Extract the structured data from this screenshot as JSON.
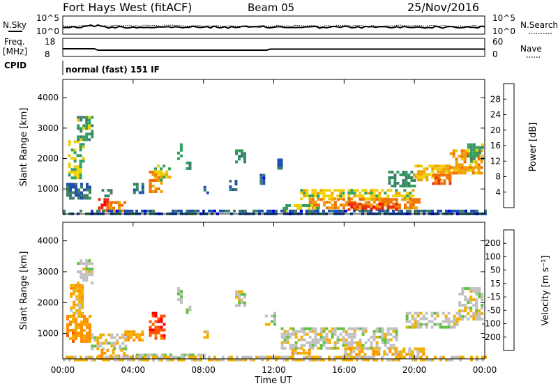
{
  "header": {
    "radar": "Fort Hays West (fitACF)",
    "beam": "Beam 05",
    "date": "25/Nov/2016"
  },
  "noise_panel": {
    "left_label": "N.Sky",
    "left_ticks": [
      "10^5",
      "10^0"
    ],
    "right_label": "N.Search",
    "right_ticks": [
      "10^5",
      "10^0"
    ]
  },
  "freq_panel": {
    "left_label_1": "Freq.",
    "left_label_2": "[MHz]",
    "left_ticks": [
      "18",
      "8"
    ],
    "right_label": "Nave",
    "right_ticks": [
      "60",
      "0"
    ]
  },
  "cpid": {
    "label": "CPID",
    "value": "normal (fast) 151 IF"
  },
  "colors": {
    "power": [
      "#0000ff",
      "#1f4fb0",
      "#3f7f6a",
      "#2f9f5f",
      "#f0d000",
      "#f0a000",
      "#f07000",
      "#e83010",
      "#ff0000"
    ],
    "velocity": [
      "#ff0000",
      "#ff5000",
      "#ff9000",
      "#f0b000",
      "#c0c0c0",
      "#60c040",
      "#40a040",
      "#1f6fa0",
      "#2020b0"
    ]
  },
  "chart_data": [
    {
      "type": "heatmap",
      "name": "power",
      "ylabel": "Slant Range [km]",
      "ylim": [
        180,
        4600
      ],
      "yticks": [
        "1000",
        "2000",
        "3000",
        "4000"
      ],
      "colorbar_label": "Power [dB]",
      "colorbar_ticks": [
        "4",
        "8",
        "12",
        "16",
        "20",
        "24",
        "28"
      ],
      "colorbar_range": [
        0,
        32
      ],
      "regions": [
        {
          "t": [
            0.3,
            1.2
          ],
          "r": [
            1400,
            2600
          ],
          "v": 14
        },
        {
          "t": [
            0.8,
            1.6
          ],
          "r": [
            2600,
            3400
          ],
          "v": 12
        },
        {
          "t": [
            0.2,
            1.6
          ],
          "r": [
            700,
            1200
          ],
          "v": 8
        },
        {
          "t": [
            2.2,
            2.8
          ],
          "r": [
            800,
            1000
          ],
          "v": 10
        },
        {
          "t": [
            2.0,
            2.5
          ],
          "r": [
            300,
            700
          ],
          "v": 26
        },
        {
          "t": [
            2.5,
            3.6
          ],
          "r": [
            300,
            600
          ],
          "v": 22
        },
        {
          "t": [
            4.0,
            4.6
          ],
          "r": [
            900,
            1200
          ],
          "v": 8
        },
        {
          "t": [
            4.9,
            5.6
          ],
          "r": [
            900,
            1600
          ],
          "v": 22
        },
        {
          "t": [
            5.2,
            6.1
          ],
          "r": [
            1300,
            1800
          ],
          "v": 16
        },
        {
          "t": [
            6.5,
            6.7
          ],
          "r": [
            2000,
            2500
          ],
          "v": 12
        },
        {
          "t": [
            7.0,
            7.2
          ],
          "r": [
            1700,
            1900
          ],
          "v": 10
        },
        {
          "t": [
            8.0,
            8.3
          ],
          "r": [
            900,
            1100
          ],
          "v": 6
        },
        {
          "t": [
            9.8,
            10.3
          ],
          "r": [
            1900,
            2300
          ],
          "v": 10
        },
        {
          "t": [
            9.3,
            9.8
          ],
          "r": [
            1000,
            1300
          ],
          "v": 8
        },
        {
          "t": [
            11.2,
            11.4
          ],
          "r": [
            1200,
            1500
          ],
          "v": 6
        },
        {
          "t": [
            12.2,
            12.5
          ],
          "r": [
            1700,
            2000
          ],
          "v": 6
        },
        {
          "t": [
            13.5,
            20.0
          ],
          "r": [
            700,
            1000
          ],
          "v": 16
        },
        {
          "t": [
            14.0,
            20.5
          ],
          "r": [
            400,
            700
          ],
          "v": 22
        },
        {
          "t": [
            16.2,
            19.0
          ],
          "r": [
            350,
            550
          ],
          "v": 27
        },
        {
          "t": [
            12.5,
            14.5
          ],
          "r": [
            300,
            500
          ],
          "v": 14
        },
        {
          "t": [
            18.5,
            20.0
          ],
          "r": [
            1100,
            1600
          ],
          "v": 10
        },
        {
          "t": [
            20.0,
            22.0
          ],
          "r": [
            1300,
            1800
          ],
          "v": 18
        },
        {
          "t": [
            21.0,
            22.0
          ],
          "r": [
            1200,
            1500
          ],
          "v": 24
        },
        {
          "t": [
            22.0,
            23.8
          ],
          "r": [
            1500,
            2300
          ],
          "v": 20
        },
        {
          "t": [
            23.0,
            23.9
          ],
          "r": [
            1900,
            2500
          ],
          "v": 12
        },
        {
          "t": [
            0.0,
            24.0
          ],
          "r": [
            180,
            320
          ],
          "v": 6
        }
      ]
    },
    {
      "type": "heatmap",
      "name": "velocity",
      "ylabel": "Slant Range [km]",
      "xlabel": "Time UT",
      "ylim": [
        180,
        4600
      ],
      "xticks": [
        "00:00",
        "04:00",
        "08:00",
        "12:00",
        "16:00",
        "20:00",
        "00:00"
      ],
      "yticks": [
        "1000",
        "2000",
        "3000",
        "4000"
      ],
      "colorbar_label": "Velocity [m s⁻¹]",
      "colorbar_ticks": [
        "200",
        "100",
        "50",
        "15",
        "-15",
        "-50",
        "-100",
        "-200"
      ],
      "colorbar_range": [
        -250,
        250
      ],
      "regions": [
        {
          "t": [
            0.2,
            1.6
          ],
          "r": [
            700,
            1600
          ],
          "v": -100
        },
        {
          "t": [
            0.4,
            1.1
          ],
          "r": [
            1600,
            2600
          ],
          "v": -60
        },
        {
          "t": [
            0.8,
            1.6
          ],
          "r": [
            2600,
            3400
          ],
          "v": 0
        },
        {
          "t": [
            1.6,
            3.6
          ],
          "r": [
            500,
            1000
          ],
          "v": 0
        },
        {
          "t": [
            2.0,
            3.6
          ],
          "r": [
            200,
            500
          ],
          "v": -80
        },
        {
          "t": [
            3.5,
            4.6
          ],
          "r": [
            800,
            1100
          ],
          "v": -80
        },
        {
          "t": [
            4.9,
            5.8
          ],
          "r": [
            800,
            1700
          ],
          "v": -180
        },
        {
          "t": [
            6.5,
            6.7
          ],
          "r": [
            2000,
            2500
          ],
          "v": 40
        },
        {
          "t": [
            7.0,
            7.2
          ],
          "r": [
            1700,
            1900
          ],
          "v": 40
        },
        {
          "t": [
            8.0,
            8.3
          ],
          "r": [
            900,
            1100
          ],
          "v": -50
        },
        {
          "t": [
            9.8,
            10.3
          ],
          "r": [
            1900,
            2400
          ],
          "v": 0
        },
        {
          "t": [
            11.5,
            12.0
          ],
          "r": [
            1300,
            1700
          ],
          "v": 0
        },
        {
          "t": [
            12.4,
            19.0
          ],
          "r": [
            500,
            1200
          ],
          "v": 0
        },
        {
          "t": [
            13.0,
            14.0
          ],
          "r": [
            300,
            500
          ],
          "v": -60
        },
        {
          "t": [
            16.0,
            20.5
          ],
          "r": [
            350,
            550
          ],
          "v": -50
        },
        {
          "t": [
            19.5,
            22.5
          ],
          "r": [
            1200,
            1700
          ],
          "v": 0
        },
        {
          "t": [
            22.5,
            23.9
          ],
          "r": [
            1500,
            2500
          ],
          "v": 0
        },
        {
          "t": [
            4.0,
            8.0
          ],
          "r": [
            180,
            350
          ],
          "v": 30
        },
        {
          "t": [
            0.0,
            24.0
          ],
          "r": [
            180,
            280
          ],
          "v": -30
        }
      ]
    }
  ]
}
